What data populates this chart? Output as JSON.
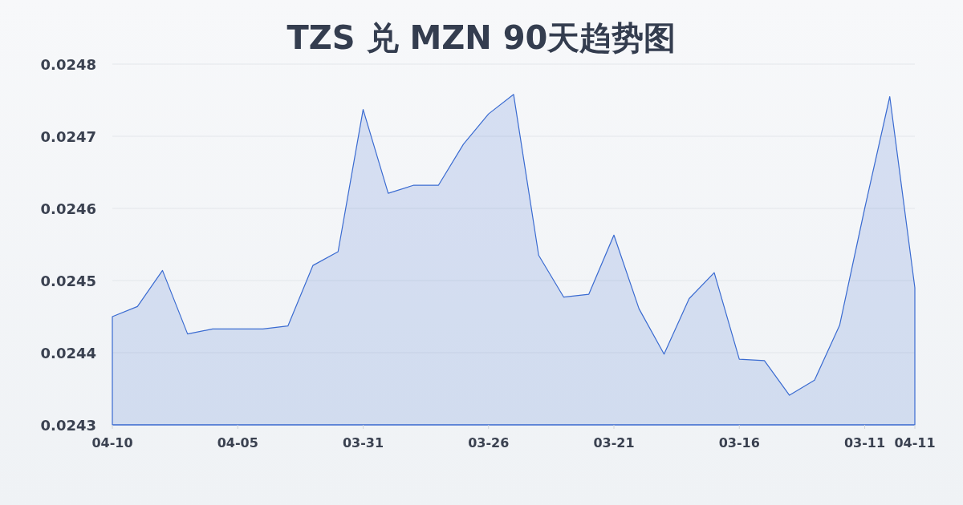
{
  "chart_data": {
    "type": "area",
    "title": "TZS 兑 MZN 90天趋势图",
    "categories": [
      "04-10",
      null,
      null,
      null,
      null,
      "04-05",
      null,
      null,
      null,
      null,
      "03-31",
      null,
      null,
      null,
      null,
      "03-26",
      null,
      null,
      null,
      null,
      "03-21",
      null,
      null,
      null,
      null,
      "03-16",
      null,
      null,
      null,
      null,
      "03-11",
      null,
      "04-11"
    ],
    "series": [
      {
        "color": "#3a6bd1",
        "values": [
          0.02445,
          0.024464,
          0.024514,
          0.024426,
          0.024433,
          0.024433,
          0.024433,
          0.024437,
          0.024521,
          0.02454,
          0.024737,
          0.024621,
          0.024632,
          0.024632,
          0.024689,
          0.024731,
          0.024758,
          0.024535,
          0.024477,
          0.024481,
          0.024563,
          0.024461,
          0.024398,
          0.024475,
          0.024511,
          0.024391,
          0.024389,
          0.024341,
          0.024362,
          0.024438,
          0.0246,
          0.024755,
          0.02449
        ]
      }
    ],
    "ylim": [
      0.0243,
      0.0248
    ],
    "yticks": [
      0.0243,
      0.0244,
      0.0245,
      0.0246,
      0.0247,
      0.0248
    ],
    "grid": "y"
  }
}
